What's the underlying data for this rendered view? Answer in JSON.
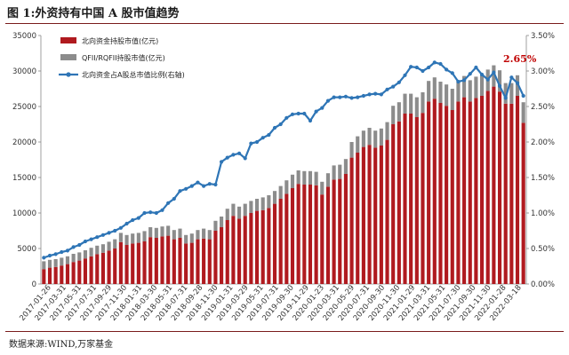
{
  "figure_title": "图 1:外资持有中国 A 股市值趋势",
  "source_note": "数据来源:WIND,万家基金",
  "colors": {
    "north": "#b01a1f",
    "qfii": "#8c8c8c",
    "ratio": "#2e75b6",
    "accent": "#c00000",
    "rule": "#7a1b1b"
  },
  "chart_data": {
    "type": "bar",
    "stacked": true,
    "legend_position": "top-left",
    "grid": false,
    "y_left": {
      "min": 0,
      "max": 35000,
      "ticks": [
        "0",
        "5000",
        "10000",
        "15000",
        "20000",
        "25000",
        "30000",
        "35000"
      ]
    },
    "y_right": {
      "min": 0,
      "max": 3.5,
      "ticks": [
        "0.00%",
        "0.50%",
        "1.00%",
        "1.50%",
        "2.00%",
        "2.50%",
        "3.00%",
        "3.50%"
      ]
    },
    "x_tick_labels": [
      "2017-01-26",
      "2017-03-31",
      "2017-05-31",
      "2017-07-31",
      "2017-09-29",
      "2017-11-30",
      "2018-01-31",
      "2018-03-30",
      "2018-05-31",
      "2018-07-31",
      "2018-09-28",
      "2018-11-30",
      "2019-01-31",
      "2019-03-29",
      "2019-05-31",
      "2019-07-31",
      "2019-09-30",
      "2019-11-29",
      "2020-01-23",
      "2020-03-31",
      "2020-05-29",
      "2020-07-31",
      "2020-09-30",
      "2020-11-30",
      "2021-01-29",
      "2021-03-31",
      "2021-05-31",
      "2021-07-30",
      "2021-09-30",
      "2021-11-30",
      "2022-01-28",
      "2022-03-18"
    ],
    "annotation": "2.65%",
    "series": [
      {
        "name": "北向资金持股市值(亿元)",
        "values": [
          2100,
          2300,
          2400,
          2600,
          2800,
          3100,
          3300,
          3600,
          3900,
          4200,
          4400,
          4700,
          5000,
          5900,
          5500,
          5700,
          5800,
          6000,
          6600,
          6500,
          6700,
          6800,
          6300,
          6500,
          5700,
          5800,
          6300,
          6400,
          6300,
          7500,
          8000,
          9000,
          9600,
          9200,
          9600,
          10000,
          10300,
          10400,
          10700,
          11300,
          12000,
          12700,
          13500,
          14100,
          14000,
          14000,
          13900,
          12600,
          13700,
          14700,
          14800,
          15500,
          17800,
          18500,
          19300,
          19600,
          19200,
          19500,
          20300,
          22500,
          22900,
          24000,
          24000,
          23500,
          24100,
          25700,
          26100,
          25500,
          25100,
          24500,
          25700,
          26300,
          25700,
          26200,
          26500,
          27200,
          27800,
          27100,
          25400,
          25400,
          26500,
          22700
        ]
      },
      {
        "name": "QFII/RQFII持股市值(亿元)",
        "values": [
          1100,
          1100,
          1100,
          1100,
          1100,
          1150,
          1150,
          1150,
          1200,
          1200,
          1200,
          1250,
          1300,
          1300,
          1400,
          1400,
          1400,
          1450,
          1400,
          1400,
          1400,
          1400,
          1300,
          1300,
          1200,
          1300,
          1300,
          1400,
          1300,
          1400,
          1500,
          1600,
          1700,
          1700,
          1700,
          1700,
          1700,
          1800,
          1800,
          1800,
          1800,
          1900,
          1900,
          1900,
          1900,
          1900,
          1900,
          1800,
          1900,
          2000,
          2000,
          2100,
          2200,
          2300,
          2300,
          2400,
          2400,
          2400,
          2500,
          2600,
          2700,
          2800,
          2800,
          2800,
          2900,
          2900,
          3000,
          3000,
          3000,
          3000,
          3000,
          3000,
          3000,
          3000,
          3000,
          3000,
          3000,
          3000,
          2900,
          2900,
          2900,
          2900
        ]
      },
      {
        "name": "北向资金占A股总市值比例(右轴)",
        "values": [
          0.37,
          0.4,
          0.42,
          0.45,
          0.47,
          0.52,
          0.55,
          0.6,
          0.63,
          0.66,
          0.69,
          0.72,
          0.75,
          0.79,
          0.85,
          0.9,
          0.93,
          1.0,
          1.01,
          1.0,
          1.04,
          1.14,
          1.2,
          1.31,
          1.34,
          1.38,
          1.43,
          1.38,
          1.41,
          1.4,
          1.72,
          1.78,
          1.82,
          1.84,
          1.77,
          1.98,
          2.0,
          2.06,
          2.1,
          2.2,
          2.25,
          2.34,
          2.39,
          2.4,
          2.4,
          2.3,
          2.43,
          2.48,
          2.58,
          2.63,
          2.63,
          2.64,
          2.62,
          2.63,
          2.65,
          2.67,
          2.68,
          2.67,
          2.74,
          2.78,
          2.84,
          2.94,
          3.06,
          3.05,
          3.0,
          3.05,
          3.12,
          3.1,
          3.02,
          2.97,
          2.85,
          2.87,
          2.96,
          3.05,
          2.95,
          2.88,
          2.98,
          2.79,
          2.62,
          2.91,
          2.83,
          2.65
        ]
      }
    ]
  }
}
